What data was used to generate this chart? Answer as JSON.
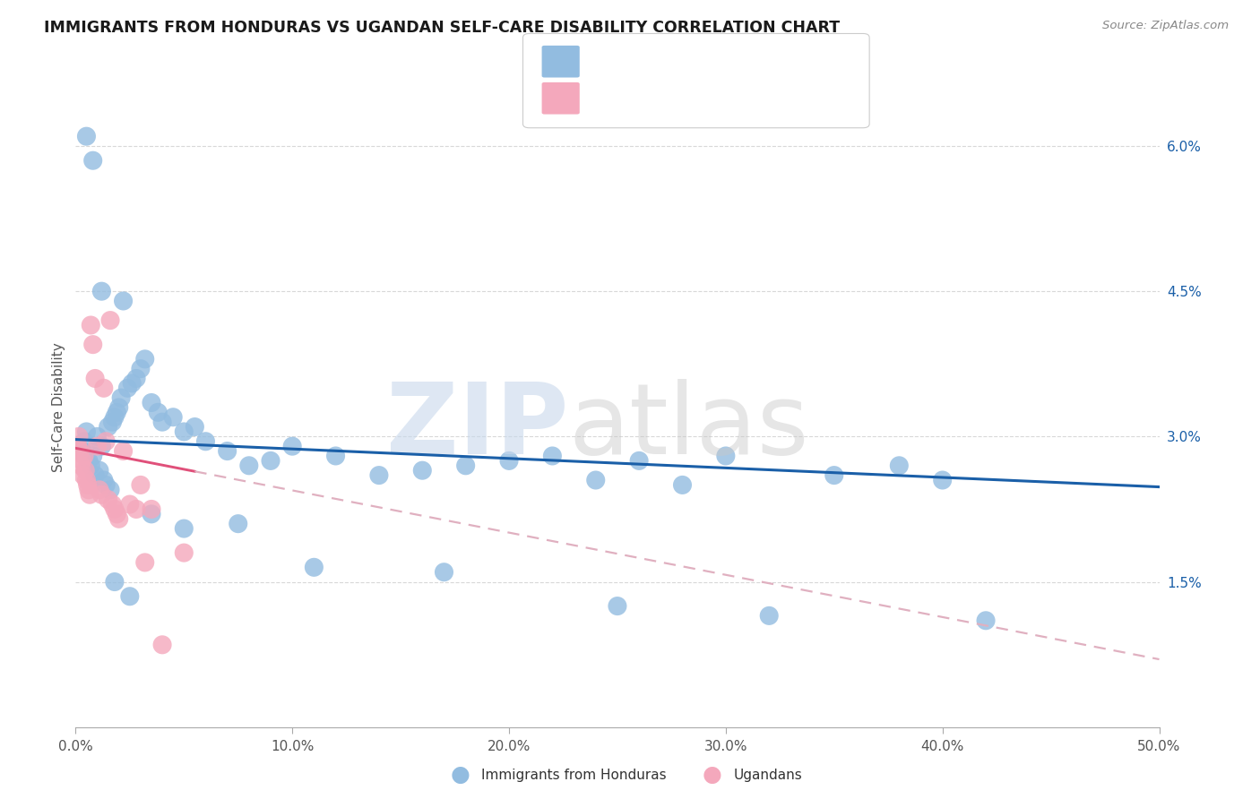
{
  "title": "IMMIGRANTS FROM HONDURAS VS UGANDAN SELF-CARE DISABILITY CORRELATION CHART",
  "source": "Source: ZipAtlas.com",
  "ylabel": "Self-Care Disability",
  "xlim": [
    0.0,
    50.0
  ],
  "ylim": [
    0.0,
    6.6
  ],
  "ytick_positions": [
    1.5,
    3.0,
    4.5,
    6.0
  ],
  "ytick_labels": [
    "1.5%",
    "3.0%",
    "4.5%",
    "6.0%"
  ],
  "xtick_positions": [
    0,
    10,
    20,
    30,
    40,
    50
  ],
  "xtick_labels": [
    "0.0%",
    "10.0%",
    "20.0%",
    "30.0%",
    "40.0%",
    "50.0%"
  ],
  "blue_color": "#92bce0",
  "pink_color": "#f4a8bc",
  "line_blue": "#1a5fa8",
  "line_pink": "#e0507a",
  "line_pink_dash": "#e0b0c0",
  "watermark_zip_color": "#c8d8ec",
  "watermark_atlas_color": "#c8c8c8",
  "legend_box_edge": "#cccccc",
  "grid_color": "#d8d8d8",
  "blue_x": [
    0.3,
    0.4,
    0.5,
    0.6,
    0.7,
    0.8,
    0.9,
    1.0,
    1.1,
    1.2,
    1.3,
    1.4,
    1.5,
    1.6,
    1.7,
    1.8,
    1.9,
    2.0,
    2.1,
    2.2,
    2.4,
    2.6,
    2.8,
    3.0,
    3.2,
    3.5,
    3.8,
    4.0,
    4.5,
    5.0,
    5.5,
    6.0,
    7.0,
    8.0,
    9.0,
    10.0,
    12.0,
    14.0,
    16.0,
    18.0,
    20.0,
    22.0,
    24.0,
    26.0,
    28.0,
    30.0,
    35.0,
    38.0,
    40.0,
    0.5,
    0.8,
    1.2,
    1.8,
    2.5,
    3.5,
    5.0,
    7.5,
    11.0,
    17.0,
    25.0,
    32.0,
    42.0
  ],
  "blue_y": [
    2.85,
    2.95,
    3.05,
    2.75,
    2.7,
    2.8,
    2.6,
    3.0,
    2.65,
    2.9,
    2.55,
    2.5,
    3.1,
    2.45,
    3.15,
    3.2,
    3.25,
    3.3,
    3.4,
    4.4,
    3.5,
    3.55,
    3.6,
    3.7,
    3.8,
    3.35,
    3.25,
    3.15,
    3.2,
    3.05,
    3.1,
    2.95,
    2.85,
    2.7,
    2.75,
    2.9,
    2.8,
    2.6,
    2.65,
    2.7,
    2.75,
    2.8,
    2.55,
    2.75,
    2.5,
    2.8,
    2.6,
    2.7,
    2.55,
    6.1,
    5.85,
    4.5,
    1.5,
    1.35,
    2.2,
    2.05,
    2.1,
    1.65,
    1.6,
    1.25,
    1.15,
    1.1
  ],
  "pink_x": [
    0.1,
    0.15,
    0.2,
    0.25,
    0.3,
    0.35,
    0.4,
    0.45,
    0.5,
    0.55,
    0.6,
    0.65,
    0.7,
    0.8,
    0.9,
    1.0,
    1.1,
    1.2,
    1.3,
    1.4,
    1.5,
    1.6,
    1.7,
    1.8,
    1.9,
    2.0,
    2.2,
    2.5,
    2.8,
    3.0,
    3.2,
    3.5,
    4.0,
    5.0
  ],
  "pink_y": [
    2.9,
    3.0,
    2.85,
    2.7,
    2.75,
    2.6,
    2.8,
    2.65,
    2.55,
    2.5,
    2.45,
    2.4,
    4.15,
    3.95,
    3.6,
    2.9,
    2.45,
    2.4,
    3.5,
    2.95,
    2.35,
    4.2,
    2.3,
    2.25,
    2.2,
    2.15,
    2.85,
    2.3,
    2.25,
    2.5,
    1.7,
    2.25,
    0.85,
    1.8
  ],
  "blue_line_x0": 0.0,
  "blue_line_y0": 2.97,
  "blue_line_x1": 50.0,
  "blue_line_y1": 2.48,
  "pink_line_x0": 0.0,
  "pink_line_y0": 2.88,
  "pink_line_x1": 50.0,
  "pink_line_y1": 0.7,
  "pink_solid_end": 5.5,
  "label_honduras": "Immigrants from Honduras",
  "label_ugandans": "Ugandans"
}
